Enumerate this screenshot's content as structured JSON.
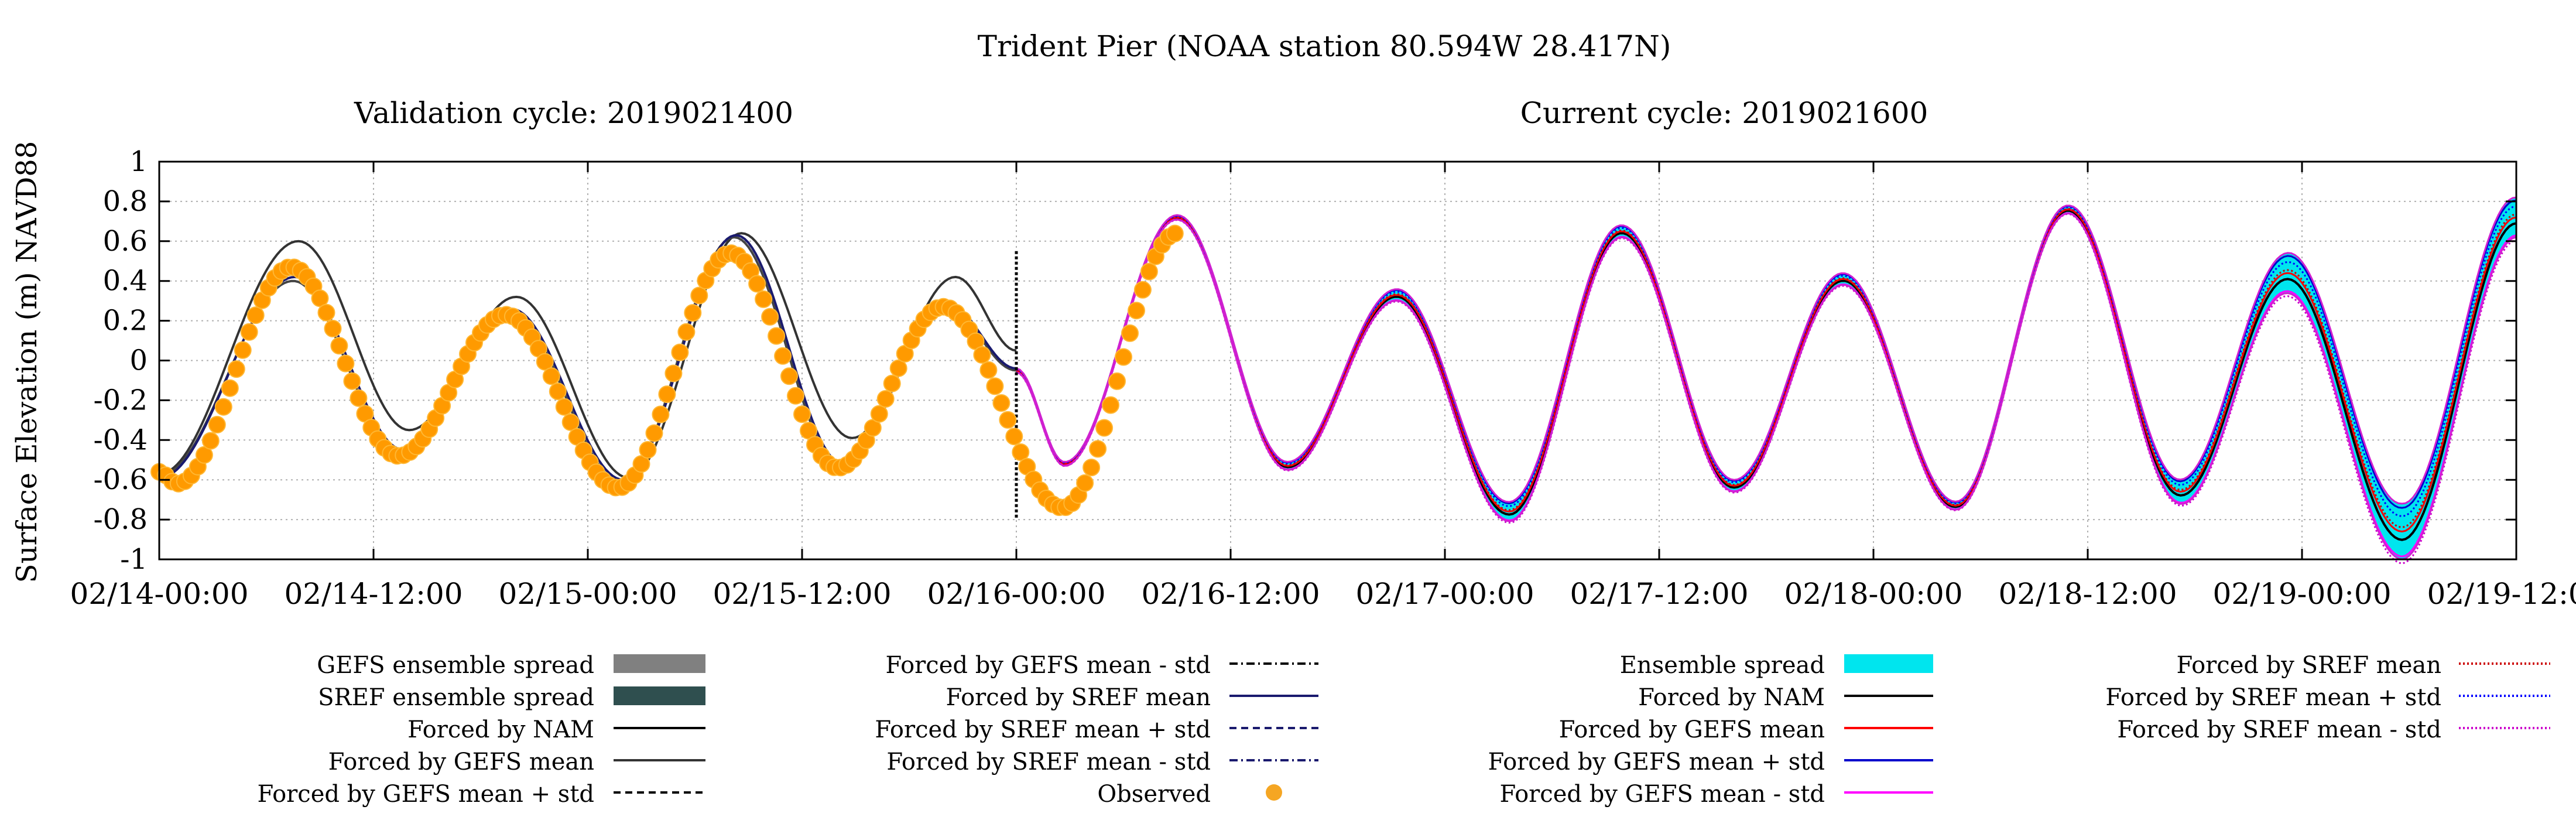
{
  "chart_data": {
    "type": "line",
    "title": "Trident Pier (NOAA station 80.594W 28.417N)",
    "subtitle_left": "Validation cycle: 2019021400",
    "subtitle_right": "Current cycle: 2019021600",
    "ylabel": "Surface Elevation (m) NAVD88",
    "xlabel": "",
    "ylim": [
      -1,
      1
    ],
    "yticks": [
      1,
      0.8,
      0.6,
      0.4,
      0.2,
      0,
      -0.2,
      -0.4,
      -0.6,
      -0.8,
      -1
    ],
    "ytick_labels": [
      "1",
      "0.8",
      "0.6",
      "0.4",
      "0.2",
      "0",
      "-0.2",
      "-0.4",
      "-0.6",
      "-0.8",
      "-1"
    ],
    "xlim_hours": [
      0,
      132
    ],
    "xticks_hours": [
      0,
      12,
      24,
      36,
      48,
      60,
      72,
      84,
      96,
      108,
      120,
      132
    ],
    "xtick_labels": [
      "02/14-00:00",
      "02/14-12:00",
      "02/15-00:00",
      "02/15-12:00",
      "02/16-00:00",
      "02/16-12:00",
      "02/17-00:00",
      "02/17-12:00",
      "02/18-00:00",
      "02/18-12:00",
      "02/19-00:00",
      "02/19-12:00"
    ],
    "grid": true,
    "cycle_divider_hour": 48,
    "tide": {
      "extrema_validation_nam": [
        [
          0,
          -0.57
        ],
        [
          7.8,
          0.6
        ],
        [
          14.0,
          -0.35
        ],
        [
          20.0,
          0.32
        ],
        [
          26.3,
          -0.59
        ],
        [
          32.6,
          0.64
        ],
        [
          38.8,
          -0.39
        ],
        [
          44.6,
          0.42
        ],
        [
          48,
          0.05
        ]
      ],
      "extrema_validation_gefs": [
        [
          0,
          -0.58
        ],
        [
          7.5,
          0.4
        ],
        [
          13.6,
          -0.46
        ],
        [
          19.6,
          0.25
        ],
        [
          25.9,
          -0.61
        ],
        [
          32.2,
          0.62
        ],
        [
          38.2,
          -0.53
        ],
        [
          44.0,
          0.28
        ],
        [
          48,
          -0.05
        ]
      ],
      "extrema_validation_sref": [
        [
          0,
          -0.59
        ],
        [
          7.6,
          0.42
        ],
        [
          13.7,
          -0.45
        ],
        [
          19.7,
          0.26
        ],
        [
          26.0,
          -0.6
        ],
        [
          32.3,
          0.63
        ],
        [
          38.3,
          -0.52
        ],
        [
          44.1,
          0.29
        ],
        [
          48,
          -0.04
        ]
      ],
      "extrema_observed": [
        [
          0,
          -0.56
        ],
        [
          1.0,
          -0.62
        ],
        [
          7.4,
          0.47
        ],
        [
          13.4,
          -0.48
        ],
        [
          19.4,
          0.23
        ],
        [
          25.7,
          -0.64
        ],
        [
          32.0,
          0.54
        ],
        [
          38.0,
          -0.54
        ],
        [
          43.9,
          0.27
        ],
        [
          50.6,
          -0.74
        ],
        [
          57.0,
          0.64
        ]
      ],
      "extrema_forecast_mean": [
        [
          48,
          -0.05
        ],
        [
          50.7,
          -0.52
        ],
        [
          57.0,
          0.72
        ],
        [
          63.2,
          -0.53
        ],
        [
          69.3,
          0.33
        ],
        [
          75.6,
          -0.76
        ],
        [
          81.9,
          0.65
        ],
        [
          88.2,
          -0.63
        ],
        [
          94.3,
          0.41
        ],
        [
          100.6,
          -0.73
        ],
        [
          106.9,
          0.76
        ],
        [
          113.2,
          -0.66
        ],
        [
          119.2,
          0.44
        ],
        [
          125.6,
          -0.86
        ],
        [
          132.0,
          0.72
        ]
      ],
      "spread_halfwidth": [
        [
          48,
          0.01
        ],
        [
          56,
          0.01
        ],
        [
          63,
          0.02
        ],
        [
          70,
          0.03
        ],
        [
          76,
          0.05
        ],
        [
          82,
          0.03
        ],
        [
          88,
          0.03
        ],
        [
          94,
          0.03
        ],
        [
          101,
          0.02
        ],
        [
          107,
          0.02
        ],
        [
          113,
          0.06
        ],
        [
          119,
          0.1
        ],
        [
          125.6,
          0.14
        ],
        [
          132,
          0.1
        ]
      ]
    },
    "legend": [
      {
        "label": "GEFS ensemble spread",
        "style": "fill",
        "color": "#808080"
      },
      {
        "label": "SREF ensemble spread",
        "style": "fill-dotted",
        "color": "#2f4f4f"
      },
      {
        "label": "Forced by NAM",
        "style": "solid",
        "color": "#000000"
      },
      {
        "label": "Forced by GEFS mean",
        "style": "solid",
        "color": "#333333"
      },
      {
        "label": "Forced by GEFS mean + std",
        "style": "dashed",
        "color": "#000000"
      },
      {
        "label": "Forced by GEFS mean - std",
        "style": "dashdot",
        "color": "#000000"
      },
      {
        "label": "Forced by SREF mean",
        "style": "solid",
        "color": "#1a1a6e"
      },
      {
        "label": "Forced by SREF mean + std",
        "style": "dashed",
        "color": "#1a1a6e"
      },
      {
        "label": "Forced by SREF mean - std",
        "style": "dashdot",
        "color": "#1a1a6e"
      },
      {
        "label": "Observed",
        "style": "marker",
        "color": "#f5a623"
      },
      {
        "label": "Ensemble spread",
        "style": "fill",
        "color": "#00e5ee"
      },
      {
        "label": "Forced by NAM",
        "style": "solid",
        "color": "#000000"
      },
      {
        "label": "Forced by GEFS mean",
        "style": "solid",
        "color": "#ff0000"
      },
      {
        "label": "Forced by GEFS mean + std",
        "style": "solid",
        "color": "#0000cc"
      },
      {
        "label": "Forced by GEFS mean - std",
        "style": "solid",
        "color": "#ff00ff"
      },
      {
        "label": "Forced by SREF mean",
        "style": "dotted",
        "color": "#cc0000"
      },
      {
        "label": "Forced by SREF mean + std",
        "style": "dotted",
        "color": "#0000ff"
      },
      {
        "label": "Forced by SREF mean - std",
        "style": "dotted",
        "color": "#cc00cc"
      }
    ]
  }
}
